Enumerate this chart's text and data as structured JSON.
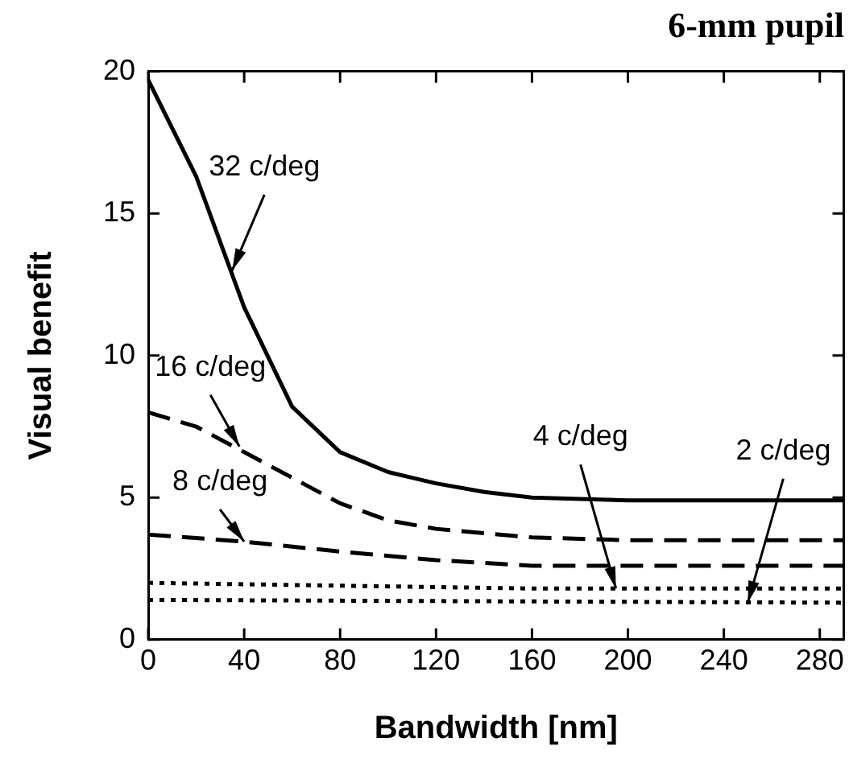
{
  "chart_data": {
    "type": "line",
    "title": "6-mm pupil",
    "xlabel": "Bandwidth [nm]",
    "ylabel": "Visual benefit",
    "xlim": [
      0,
      290
    ],
    "xticks": [
      0,
      40,
      80,
      120,
      160,
      200,
      240,
      280
    ],
    "ylim": [
      0,
      20
    ],
    "yticks": [
      0,
      5,
      10,
      15,
      20
    ],
    "grid": false,
    "legend": false,
    "marker": "none",
    "series": [
      {
        "color": "#000000",
        "line_style": "solid",
        "x": [
          0,
          20,
          40,
          60,
          80,
          100,
          120,
          140,
          160,
          200,
          290
        ],
        "values": [
          19.7,
          16.3,
          11.7,
          8.2,
          6.6,
          5.9,
          5.5,
          5.2,
          5.0,
          4.9,
          4.9
        ]
      },
      {
        "color": "#000000",
        "line_style": "dashed",
        "x": [
          0,
          20,
          40,
          60,
          80,
          100,
          120,
          160,
          200,
          290
        ],
        "values": [
          8.0,
          7.5,
          6.6,
          5.7,
          4.8,
          4.2,
          3.9,
          3.6,
          3.5,
          3.5
        ]
      },
      {
        "color": "#000000",
        "line_style": "dashed",
        "x": [
          0,
          40,
          80,
          120,
          160,
          200,
          290
        ],
        "values": [
          3.7,
          3.45,
          3.1,
          2.8,
          2.6,
          2.6,
          2.6
        ]
      },
      {
        "color": "#000000",
        "line_style": "dotted",
        "x": [
          0,
          80,
          160,
          290
        ],
        "values": [
          2.0,
          1.9,
          1.8,
          1.8
        ]
      },
      {
        "color": "#000000",
        "line_style": "dotted",
        "x": [
          0,
          290
        ],
        "values": [
          1.4,
          1.3
        ]
      }
    ],
    "annotations": [
      {
        "text": "32 c/deg",
        "x": 35,
        "y": 13
      },
      {
        "text": "16 c/deg",
        "x": 38,
        "y": 6.8
      },
      {
        "text": "8 c/deg",
        "x": 40,
        "y": 3.45
      },
      {
        "text": "4 c/deg",
        "x": 195,
        "y": 1.8
      },
      {
        "text": "2 c/deg",
        "x": 250,
        "y": 1.3
      }
    ]
  }
}
